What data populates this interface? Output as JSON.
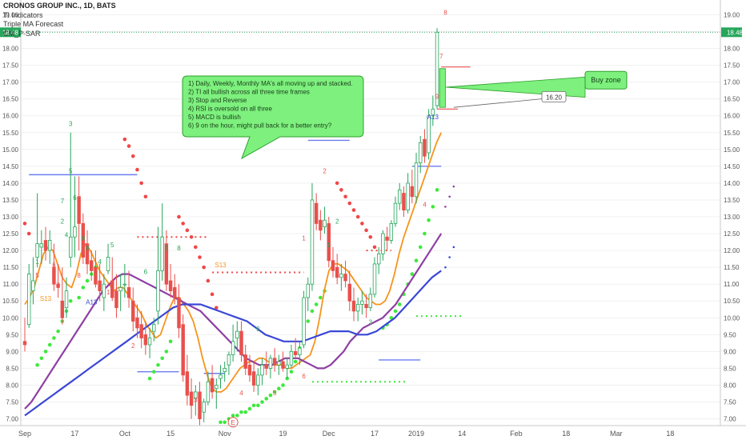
{
  "legend": {
    "title": "CRONOS GROUP INC., 1D, BATS",
    "line2": "TI Indicators",
    "line3": "Triple MA Forecast",
    "line4": "CM_P-SAR"
  },
  "colors": {
    "up": "#26a65b",
    "down": "#e8504d",
    "ma_fast": "#f7941d",
    "ma_mid": "#8e3fa3",
    "ma_slow": "#3b47d6",
    "sar_up": "#3ee83e",
    "sar_down": "#ef4747",
    "hline": "#6b7cf0",
    "price_tag": "#26a65b",
    "callout_fill": "#7df07d",
    "callout_border": "#2ea02e"
  },
  "chart_data": {
    "type": "candlestick",
    "y_ticks": [
      "7.00",
      "7.50",
      "8.00",
      "8.50",
      "9.00",
      "9.50",
      "10.00",
      "10.50",
      "11.00",
      "11.50",
      "12.00",
      "12.50",
      "13.00",
      "13.50",
      "14.00",
      "14.50",
      "15.00",
      "15.50",
      "16.00",
      "16.50",
      "17.00",
      "17.50",
      "18.00",
      "18.50",
      "19.00"
    ],
    "y_range": [
      6.8,
      19.2
    ],
    "x_labels": [
      "Sep",
      "17",
      "Oct",
      "15",
      "Nov",
      "19",
      "Dec",
      "17",
      "2019",
      "14",
      "Feb",
      "18",
      "Mar",
      "18"
    ],
    "x_label_bar_index": [
      0,
      12,
      24,
      35,
      48,
      62,
      73,
      84,
      94,
      105,
      118,
      130,
      142,
      155
    ],
    "n_bars_visible": 168,
    "last_price": "18.48",
    "candles": [
      [
        9.3,
        10.0,
        9.0,
        9.2
      ],
      [
        9.8,
        11.6,
        9.7,
        11.3
      ],
      [
        10.8,
        11.8,
        10.4,
        11.1
      ],
      [
        11.8,
        13.7,
        11.5,
        12.2
      ],
      [
        12.1,
        12.6,
        11.6,
        12.2
      ],
      [
        12.3,
        12.7,
        11.7,
        12.0
      ],
      [
        12.0,
        12.6,
        11.6,
        12.3
      ],
      [
        11.5,
        12.2,
        10.8,
        11.0
      ],
      [
        11.0,
        11.6,
        10.6,
        10.9
      ],
      [
        10.5,
        11.5,
        9.8,
        10.0
      ],
      [
        10.3,
        11.2,
        10.0,
        10.8
      ],
      [
        11.8,
        15.5,
        11.5,
        12.4
      ],
      [
        12.4,
        14.2,
        11.8,
        12.7
      ],
      [
        13.6,
        14.2,
        12.0,
        12.8
      ],
      [
        12.8,
        13.1,
        11.6,
        11.8
      ],
      [
        12.2,
        12.6,
        11.3,
        11.6
      ],
      [
        11.7,
        12.0,
        11.1,
        11.4
      ],
      [
        11.5,
        12.0,
        10.9,
        11.0
      ],
      [
        11.1,
        11.6,
        10.5,
        10.8
      ],
      [
        10.6,
        11.3,
        10.2,
        11.0
      ],
      [
        11.4,
        12.2,
        11.3,
        11.8
      ],
      [
        11.1,
        11.8,
        10.5,
        10.6
      ],
      [
        10.8,
        11.3,
        10.0,
        10.3
      ],
      [
        10.8,
        11.3,
        10.2,
        10.9
      ],
      [
        11.0,
        11.6,
        10.6,
        11.0
      ],
      [
        10.9,
        11.4,
        10.3,
        10.6
      ],
      [
        10.5,
        10.9,
        9.6,
        9.9
      ],
      [
        10.0,
        10.4,
        9.4,
        9.7
      ],
      [
        9.8,
        10.2,
        9.1,
        9.4
      ],
      [
        9.5,
        9.9,
        8.9,
        9.2
      ],
      [
        9.2,
        9.7,
        8.8,
        9.4
      ],
      [
        9.6,
        10.0,
        9.3,
        9.8
      ],
      [
        10.2,
        12.7,
        9.8,
        11.4
      ],
      [
        11.4,
        13.4,
        11.1,
        12.4
      ],
      [
        12.2,
        12.6,
        10.8,
        11.0
      ],
      [
        11.1,
        11.6,
        10.6,
        10.8
      ],
      [
        10.9,
        11.3,
        10.4,
        10.6
      ],
      [
        10.6,
        11.0,
        9.4,
        9.7
      ],
      [
        9.8,
        10.1,
        8.1,
        8.3
      ],
      [
        8.4,
        8.9,
        7.4,
        7.7
      ],
      [
        7.8,
        8.2,
        7.0,
        7.4
      ],
      [
        7.6,
        8.0,
        7.1,
        7.8
      ],
      [
        7.8,
        8.1,
        6.8,
        7.0
      ],
      [
        7.2,
        7.6,
        6.9,
        7.5
      ],
      [
        7.5,
        8.4,
        7.4,
        8.1
      ],
      [
        8.2,
        8.6,
        7.6,
        7.8
      ],
      [
        7.9,
        8.2,
        7.3,
        8.0
      ],
      [
        8.2,
        8.6,
        7.9,
        8.3
      ],
      [
        8.4,
        8.7,
        8.1,
        8.5
      ],
      [
        8.6,
        9.0,
        8.3,
        8.9
      ],
      [
        8.9,
        9.8,
        8.7,
        9.3
      ],
      [
        9.4,
        9.9,
        9.0,
        9.6
      ],
      [
        9.6,
        9.9,
        8.7,
        8.9
      ],
      [
        8.9,
        9.2,
        8.3,
        8.5
      ],
      [
        8.6,
        8.9,
        8.1,
        8.3
      ],
      [
        8.4,
        8.7,
        7.8,
        8.0
      ],
      [
        8.0,
        8.5,
        7.7,
        8.3
      ],
      [
        8.3,
        8.8,
        8.0,
        8.6
      ],
      [
        8.6,
        9.0,
        8.3,
        8.5
      ],
      [
        8.5,
        8.9,
        8.2,
        8.8
      ],
      [
        8.8,
        9.1,
        8.4,
        8.6
      ],
      [
        8.6,
        8.9,
        8.3,
        8.7
      ],
      [
        8.7,
        9.0,
        8.4,
        8.5
      ],
      [
        8.5,
        8.8,
        8.2,
        8.6
      ],
      [
        8.6,
        9.2,
        8.5,
        9.0
      ],
      [
        9.0,
        9.4,
        8.8,
        8.9
      ],
      [
        8.9,
        9.3,
        8.6,
        9.1
      ],
      [
        9.2,
        10.8,
        9.1,
        10.6
      ],
      [
        10.6,
        11.2,
        10.2,
        11.0
      ],
      [
        11.0,
        14.0,
        10.8,
        13.5
      ],
      [
        13.4,
        13.7,
        12.6,
        12.8
      ],
      [
        12.9,
        13.2,
        12.3,
        12.6
      ],
      [
        12.7,
        13.3,
        12.5,
        12.9
      ],
      [
        12.8,
        13.0,
        11.5,
        11.7
      ],
      [
        11.7,
        12.1,
        11.2,
        11.4
      ],
      [
        11.5,
        11.9,
        11.0,
        11.2
      ],
      [
        11.2,
        11.6,
        10.8,
        11.3
      ],
      [
        11.3,
        11.7,
        10.9,
        11.1
      ],
      [
        11.0,
        11.4,
        10.2,
        10.5
      ],
      [
        10.5,
        10.9,
        9.9,
        10.2
      ],
      [
        10.2,
        10.6,
        9.9,
        10.4
      ],
      [
        10.4,
        10.8,
        10.1,
        10.5
      ],
      [
        10.4,
        10.7,
        10.0,
        10.3
      ],
      [
        10.3,
        10.9,
        10.2,
        10.7
      ],
      [
        10.7,
        11.8,
        10.6,
        11.6
      ],
      [
        11.6,
        12.1,
        11.3,
        11.9
      ],
      [
        11.9,
        12.6,
        11.7,
        12.5
      ],
      [
        12.4,
        12.7,
        12.0,
        12.3
      ],
      [
        12.3,
        12.9,
        12.2,
        12.8
      ],
      [
        12.8,
        13.6,
        12.7,
        13.4
      ],
      [
        13.4,
        14.0,
        13.2,
        13.8
      ],
      [
        13.7,
        13.9,
        13.0,
        13.2
      ],
      [
        13.2,
        14.3,
        13.1,
        14.0
      ],
      [
        13.9,
        14.4,
        13.4,
        13.6
      ],
      [
        13.6,
        14.9,
        13.4,
        14.6
      ],
      [
        14.6,
        15.4,
        14.3,
        15.2
      ],
      [
        15.3,
        15.6,
        14.6,
        14.8
      ],
      [
        14.9,
        16.2,
        14.7,
        16.0
      ],
      [
        16.0,
        16.6,
        15.7,
        16.2
      ],
      [
        16.3,
        18.6,
        16.2,
        18.48
      ]
    ],
    "ma_fast": [
      10.4,
      10.6,
      10.9,
      11.4,
      11.9,
      12.1,
      12.0,
      11.6,
      11.2,
      11.0,
      10.9,
      11.3,
      11.9,
      12.2,
      12.0,
      11.7,
      11.4,
      11.2,
      11.0,
      10.8,
      10.9,
      10.9,
      10.7,
      10.5,
      10.3,
      10.1,
      9.8,
      9.6,
      9.4,
      9.5,
      9.9,
      10.3,
      10.6,
      10.6,
      10.4,
      10.2,
      9.9,
      9.4,
      8.8,
      8.3,
      7.9,
      7.8,
      7.8,
      7.9,
      8.1,
      8.3,
      8.5,
      8.6,
      8.7,
      8.7,
      8.8,
      8.8,
      8.7,
      8.6,
      8.6,
      8.6,
      8.5,
      8.5,
      8.6,
      8.7,
      8.8,
      8.9,
      9.3,
      10.0,
      10.8,
      11.4,
      11.6,
      11.6,
      11.5,
      11.4,
      11.2,
      11.0,
      10.8,
      10.6,
      10.5,
      10.4,
      10.4,
      10.5,
      10.8,
      11.3,
      11.9,
      12.4,
      12.8,
      13.2,
      13.6,
      14.0,
      14.4,
      14.8,
      15.2,
      15.5
    ],
    "ma_mid": [
      7.3,
      7.5,
      7.8,
      8.1,
      8.4,
      8.7,
      9.0,
      9.3,
      9.6,
      9.9,
      10.2,
      10.5,
      10.8,
      11.0,
      11.2,
      11.3,
      11.3,
      11.2,
      11.1,
      11.0,
      10.9,
      10.8,
      10.7,
      10.6,
      10.5,
      10.4,
      10.3,
      10.2,
      10.0,
      9.8,
      9.6,
      9.4,
      9.2,
      9.0,
      8.8,
      8.7,
      8.6,
      8.6,
      8.6,
      8.7,
      8.8,
      8.8,
      8.8,
      8.7,
      8.6,
      8.5,
      8.5,
      8.6,
      8.8,
      9.0,
      9.3,
      9.5,
      9.7,
      9.8,
      9.9,
      10.0,
      10.2,
      10.4,
      10.7,
      11.0,
      11.3,
      11.6,
      11.9,
      12.2,
      12.5
    ],
    "ma_slow": [
      7.1,
      7.3,
      7.5,
      7.7,
      7.9,
      8.1,
      8.3,
      8.5,
      8.7,
      8.9,
      9.1,
      9.3,
      9.5,
      9.7,
      9.9,
      10.1,
      10.3,
      10.4,
      10.4,
      10.4,
      10.3,
      10.2,
      10.1,
      10.0,
      9.9,
      9.7,
      9.5,
      9.4,
      9.3,
      9.3,
      9.3,
      9.4,
      9.5,
      9.6,
      9.6,
      9.6,
      9.5,
      9.5,
      9.6,
      9.8,
      10.0,
      10.3,
      10.6,
      10.9,
      11.2,
      11.4
    ]
  },
  "annotations": {
    "note_lines": [
      "1) Daily, Weekly, Monthly MA's all moving up and stacked.",
      "2) TI all bullish across all three time frames",
      "3) Stop and Reverse",
      "4) RSI is oversold on all three",
      "5) MACD is bullish",
      "6) 9 on the hour, might pull back for a better entry?"
    ],
    "buy_zone": "Buy zone",
    "price_label": "16.20",
    "circle_label": "E",
    "td_labels": [
      {
        "t": "1",
        "c": "up"
      },
      {
        "t": "2",
        "c": "up"
      },
      {
        "t": "3",
        "c": "up"
      },
      {
        "t": "4",
        "c": "up"
      },
      {
        "t": "5",
        "c": "up"
      },
      {
        "t": "6",
        "c": "up"
      },
      {
        "t": "7",
        "c": "up"
      },
      {
        "t": "8",
        "c": "up"
      },
      {
        "t": "9",
        "c": "up"
      },
      {
        "t": "1",
        "c": "down"
      },
      {
        "t": "2",
        "c": "down"
      },
      {
        "t": "3",
        "c": "down"
      },
      {
        "t": "4",
        "c": "down"
      },
      {
        "t": "5",
        "c": "down"
      },
      {
        "t": "6",
        "c": "down"
      },
      {
        "t": "7",
        "c": "down"
      },
      {
        "t": "8",
        "c": "down"
      },
      {
        "t": "9",
        "c": "down"
      },
      {
        "t": "A13",
        "c": "blue"
      },
      {
        "t": "S13",
        "c": "orange"
      }
    ]
  }
}
